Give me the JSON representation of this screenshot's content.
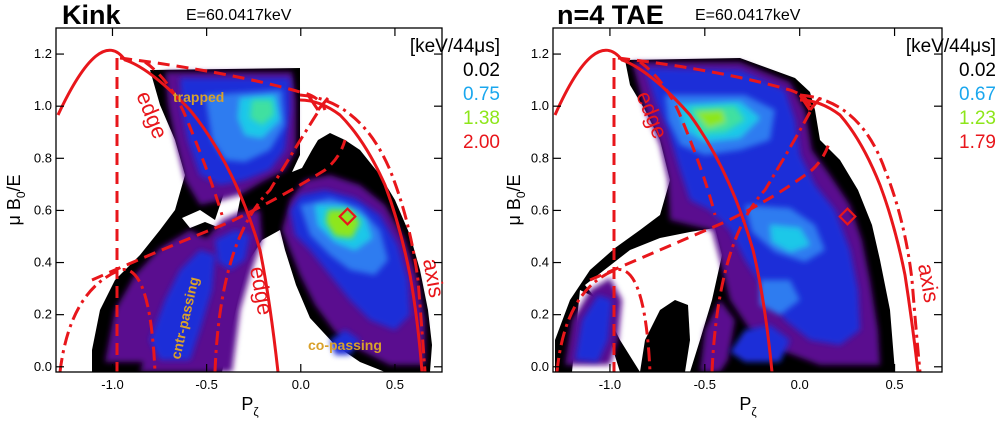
{
  "chart_data": [
    {
      "type": "heatmap",
      "title": "Kink",
      "subtitle": "E=60.0417keV",
      "xlabel": "P",
      "xlabel_sub": "ζ",
      "ylabel": "μ B",
      "ylabel_sub": "0",
      "ylabel_tail": "/E",
      "xlim": [
        -1.3,
        0.75
      ],
      "ylim": [
        -0.02,
        1.3
      ],
      "xticks": [
        -1.0,
        -0.5,
        0.0,
        0.5
      ],
      "xtick_labels": [
        "-1.0",
        "-0.5",
        "0.0",
        "0.5"
      ],
      "yticks": [
        0.0,
        0.2,
        0.4,
        0.6,
        0.8,
        1.0,
        1.2
      ],
      "ytick_labels": [
        "0.0",
        "0.2",
        "0.4",
        "0.6",
        "0.8",
        "1.0",
        "1.2"
      ],
      "legend": {
        "unit": "[keV/44μs]",
        "levels": [
          {
            "value": "0.02",
            "color": "#000000"
          },
          {
            "value": "0.75",
            "color": "#1aa7ee"
          },
          {
            "value": "1.38",
            "color": "#8de61a"
          },
          {
            "value": "2.00",
            "color": "#e8161b"
          }
        ]
      },
      "labels": {
        "edge1": "edge",
        "edge2": "edge",
        "axis": "axis",
        "trapped": "trapped",
        "cntr": "cntr-passing",
        "co": "co-passing"
      },
      "marker": {
        "x": 0.21,
        "y": 0.61
      }
    },
    {
      "type": "heatmap",
      "title": "n=4 TAE",
      "subtitle": "E=60.0417keV",
      "xlabel": "P",
      "xlabel_sub": "ζ",
      "ylabel": "μ B",
      "ylabel_sub": "0",
      "ylabel_tail": "/E",
      "xlim": [
        -1.3,
        0.75
      ],
      "ylim": [
        -0.02,
        1.3
      ],
      "xticks": [
        -1.0,
        -0.5,
        0.0,
        0.5
      ],
      "xtick_labels": [
        "-1.0",
        "-0.5",
        "0.0",
        "0.5"
      ],
      "yticks": [
        0.0,
        0.2,
        0.4,
        0.6,
        0.8,
        1.0,
        1.2
      ],
      "ytick_labels": [
        "0.0",
        "0.2",
        "0.4",
        "0.6",
        "0.8",
        "1.0",
        "1.2"
      ],
      "legend": {
        "unit": "[keV/44μs]",
        "levels": [
          {
            "value": "0.02",
            "color": "#000000"
          },
          {
            "value": "0.67",
            "color": "#1aa7ee"
          },
          {
            "value": "1.23",
            "color": "#8de61a"
          },
          {
            "value": "1.79",
            "color": "#e8161b"
          }
        ]
      },
      "labels": {
        "edge1": "edge",
        "axis": "axis"
      },
      "marker": {
        "x": 0.21,
        "y": 0.61
      }
    }
  ]
}
